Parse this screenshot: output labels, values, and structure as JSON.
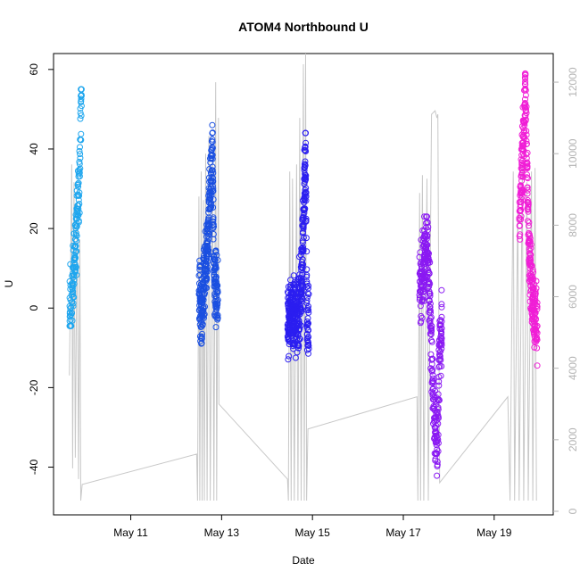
{
  "chart_data": {
    "type": "scatter",
    "title": "ATOM4 Northbound U",
    "xlabel": "Date",
    "ylabel": "U",
    "x_ticks": [
      {
        "label": "May 11",
        "day": 11
      },
      {
        "label": "May 13",
        "day": 13
      },
      {
        "label": "May 15",
        "day": 15
      },
      {
        "label": "May 17",
        "day": 17
      },
      {
        "label": "May 19",
        "day": 19
      }
    ],
    "xlim": [
      9.3,
      20.3
    ],
    "ylim": [
      -52,
      64
    ],
    "y_ticks": [
      -40,
      -20,
      0,
      20,
      40,
      60
    ],
    "y_tick_labels": [
      "-40",
      "-20",
      "0",
      "20",
      "40",
      "60"
    ],
    "y2lim": [
      -100,
      12800
    ],
    "y2_ticks": [
      0,
      2000,
      4000,
      6000,
      8000,
      10000,
      12000
    ],
    "y2_tick_labels": [
      "0",
      "2000",
      "4000",
      "6000",
      "8000",
      "10000",
      "12000"
    ],
    "grid": false,
    "colors": {
      "group1": "#1fa6ee",
      "group2": "#1a4fe0",
      "group3": "#2b1ef0",
      "group4": "#8a19f2",
      "group5": "#f01ed6",
      "secondary_line": "#c8c8c8"
    },
    "series": [
      {
        "color_key": "group1",
        "x_range": [
          9.65,
          9.92
        ],
        "u_range": [
          -4.5,
          55
        ],
        "profile": [
          [
            0,
            -4
          ],
          [
            0.2,
            2
          ],
          [
            0.4,
            12
          ],
          [
            0.6,
            20
          ],
          [
            0.8,
            32
          ],
          [
            1,
            55
          ]
        ],
        "points": 160,
        "seed": 11
      },
      {
        "color_key": "group2",
        "x_range": [
          12.5,
          12.92
        ],
        "u_range": [
          -17,
          46
        ],
        "profile": [
          [
            0,
            4
          ],
          [
            0.15,
            0
          ],
          [
            0.3,
            8
          ],
          [
            0.45,
            15
          ],
          [
            0.6,
            30
          ],
          [
            0.7,
            40
          ],
          [
            0.8,
            8
          ],
          [
            1,
            2
          ]
        ],
        "points": 340,
        "seed": 23
      },
      {
        "color_key": "group3",
        "x_range": [
          14.45,
          14.92
        ],
        "u_range": [
          -15.5,
          44
        ],
        "profile": [
          [
            0,
            -3
          ],
          [
            0.3,
            -2
          ],
          [
            0.5,
            -3
          ],
          [
            0.65,
            6
          ],
          [
            0.78,
            26
          ],
          [
            0.85,
            40
          ],
          [
            0.92,
            -2
          ],
          [
            1,
            -4
          ]
        ],
        "points": 420,
        "seed": 37
      },
      {
        "color_key": "group4",
        "x_range": [
          17.35,
          17.85
        ],
        "u_range": [
          -48.5,
          23
        ],
        "profile": [
          [
            0,
            4
          ],
          [
            0.2,
            10
          ],
          [
            0.35,
            18
          ],
          [
            0.5,
            -5
          ],
          [
            0.65,
            -25
          ],
          [
            0.8,
            -35
          ],
          [
            0.9,
            -10
          ],
          [
            1,
            -5
          ]
        ],
        "points": 320,
        "seed": 41
      },
      {
        "color_key": "group5",
        "x_range": [
          19.55,
          19.95
        ],
        "u_range": [
          -15.5,
          61
        ],
        "profile": [
          [
            0,
            20
          ],
          [
            0.2,
            40
          ],
          [
            0.35,
            55
          ],
          [
            0.5,
            20
          ],
          [
            0.65,
            8
          ],
          [
            0.8,
            0
          ],
          [
            1,
            -5
          ]
        ],
        "points": 300,
        "seed": 53
      }
    ],
    "secondary_series": {
      "color_key": "secondary_line",
      "axis": "right",
      "path": [
        [
          9.65,
          3800
        ],
        [
          9.7,
          9700
        ],
        [
          9.72,
          1200
        ],
        [
          9.75,
          9200
        ],
        [
          9.78,
          1500
        ],
        [
          9.82,
          8600
        ],
        [
          9.85,
          900
        ],
        [
          9.88,
          7600
        ],
        [
          9.9,
          300
        ],
        [
          9.93,
          750
        ],
        [
          12.45,
          1600
        ],
        [
          12.47,
          300
        ],
        [
          12.5,
          8800
        ],
        [
          12.52,
          300
        ],
        [
          12.55,
          9500
        ],
        [
          12.57,
          300
        ],
        [
          12.6,
          8700
        ],
        [
          12.62,
          300
        ],
        [
          12.65,
          10000
        ],
        [
          12.68,
          300
        ],
        [
          12.72,
          10500
        ],
        [
          12.75,
          300
        ],
        [
          12.8,
          9900
        ],
        [
          12.83,
          300
        ],
        [
          12.87,
          12000
        ],
        [
          12.89,
          300
        ],
        [
          12.93,
          11000
        ],
        [
          12.94,
          3000
        ],
        [
          14.45,
          900
        ],
        [
          14.47,
          300
        ],
        [
          14.5,
          9500
        ],
        [
          14.53,
          300
        ],
        [
          14.56,
          9300
        ],
        [
          14.6,
          300
        ],
        [
          14.65,
          9700
        ],
        [
          14.68,
          300
        ],
        [
          14.72,
          11000
        ],
        [
          14.75,
          300
        ],
        [
          14.8,
          12500
        ],
        [
          14.82,
          300
        ],
        [
          14.85,
          12800
        ],
        [
          14.87,
          300
        ],
        [
          14.9,
          2300
        ],
        [
          17.3,
          3200
        ],
        [
          17.32,
          300
        ],
        [
          17.36,
          8900
        ],
        [
          17.38,
          300
        ],
        [
          17.42,
          9400
        ],
        [
          17.45,
          300
        ],
        [
          17.52,
          9300
        ],
        [
          17.55,
          300
        ],
        [
          17.62,
          11100
        ],
        [
          17.7,
          11200
        ],
        [
          17.74,
          11000
        ],
        [
          17.76,
          11100
        ],
        [
          17.8,
          800
        ],
        [
          19.3,
          3200
        ],
        [
          19.35,
          300
        ],
        [
          19.42,
          9500
        ],
        [
          19.45,
          300
        ],
        [
          19.52,
          8700
        ],
        [
          19.55,
          300
        ],
        [
          19.62,
          9600
        ],
        [
          19.65,
          300
        ],
        [
          19.72,
          9200
        ],
        [
          19.75,
          300
        ],
        [
          19.82,
          9500
        ],
        [
          19.85,
          300
        ],
        [
          19.9,
          9600
        ],
        [
          19.93,
          300
        ]
      ]
    }
  }
}
